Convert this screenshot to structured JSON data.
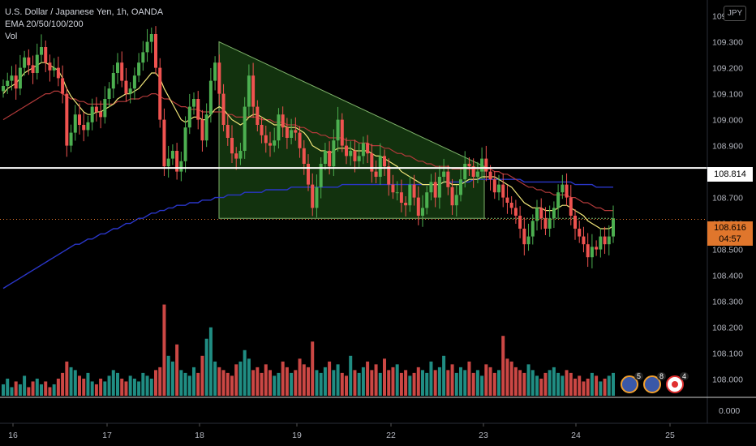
{
  "legend": {
    "symbol": "U.S. Dollar / Japanese Yen, 1h, OANDA",
    "ema": "EMA 20/50/100/200",
    "vol": "Vol"
  },
  "currency_badge": "JPY",
  "price_tags": {
    "level_line": "108.814",
    "last_price": "108.616",
    "countdown": "04:57"
  },
  "events": [
    {
      "icon": "us-flag-icon",
      "count": "5"
    },
    {
      "icon": "us-flag-icon",
      "count": "8"
    },
    {
      "icon": "target-icon",
      "count": "4"
    }
  ],
  "colors": {
    "background": "#000000",
    "up": "#4caf50",
    "down": "#ef5350",
    "vol_up": "#26a69a",
    "vol_down": "#ef5350",
    "ema20": "#f2e77a",
    "ema50": "#b23a3a",
    "ema200": "#2a36c8",
    "triangle": "#3f7f2f",
    "level_line": "#ffffff",
    "last_price": "#e0762c"
  },
  "chart_data": {
    "type": "candlestick",
    "title": "U.S. Dollar / Japanese Yen, 1h, OANDA",
    "y_ticks": [
      "109.400",
      "109.300",
      "109.200",
      "109.100",
      "109.000",
      "108.900",
      "108.800",
      "108.700",
      "108.600",
      "108.500",
      "108.400",
      "108.300",
      "108.200",
      "108.100",
      "108.000"
    ],
    "ylim": [
      107.93,
      109.43
    ],
    "volume_ticks": [
      "0.000"
    ],
    "x_ticks": [
      "16",
      "17",
      "18",
      "19",
      "22",
      "23",
      "24",
      "25"
    ],
    "horizontal_level": 108.814,
    "last_price": 108.616,
    "triangle_pattern": {
      "start_high": 109.3,
      "start_low": 108.62,
      "end_low": 108.62
    },
    "close_prices": [
      109.13,
      109.15,
      109.17,
      109.12,
      109.2,
      109.24,
      109.21,
      109.18,
      109.25,
      109.28,
      109.22,
      109.19,
      109.2,
      109.16,
      109.1,
      108.9,
      108.95,
      109.02,
      108.98,
      108.96,
      108.99,
      109.05,
      109.03,
      109.01,
      109.08,
      109.12,
      109.18,
      109.22,
      109.15,
      109.1,
      109.12,
      109.17,
      109.22,
      109.26,
      109.3,
      109.33,
      109.2,
      109.0,
      108.82,
      108.85,
      108.88,
      108.8,
      108.84,
      108.97,
      109.05,
      109.08,
      109.0,
      108.92,
      109.02,
      109.15,
      109.22,
      109.1,
      108.98,
      108.93,
      108.87,
      108.85,
      108.88,
      109.05,
      109.17,
      109.05,
      108.98,
      108.94,
      108.91,
      108.9,
      108.92,
      109.02,
      108.97,
      108.93,
      108.96,
      108.95,
      108.89,
      108.83,
      108.75,
      108.66,
      108.74,
      108.83,
      108.88,
      108.82,
      108.92,
      109.0,
      108.9,
      108.86,
      108.88,
      108.84,
      108.86,
      108.91,
      108.87,
      108.8,
      108.78,
      108.86,
      108.82,
      108.75,
      108.72,
      108.72,
      108.68,
      108.67,
      108.75,
      108.7,
      108.63,
      108.66,
      108.72,
      108.76,
      108.7,
      108.78,
      108.8,
      108.74,
      108.67,
      108.71,
      108.77,
      108.83,
      108.82,
      108.78,
      108.8,
      108.85,
      108.8,
      108.77,
      108.72,
      108.75,
      108.7,
      108.68,
      108.66,
      108.63,
      108.58,
      108.52,
      108.55,
      108.61,
      108.66,
      108.62,
      108.58,
      108.62,
      108.66,
      108.72,
      108.75,
      108.7,
      108.63,
      108.58,
      108.55,
      108.52,
      108.47,
      108.51,
      108.5,
      108.55,
      108.52,
      108.55,
      108.62
    ],
    "ema20": [
      109.1,
      109.12,
      109.13,
      109.14,
      109.16,
      109.18,
      109.19,
      109.2,
      109.21,
      109.22,
      109.22,
      109.21,
      109.2,
      109.19,
      109.16,
      109.12,
      109.09,
      109.07,
      109.05,
      109.03,
      109.02,
      109.02,
      109.03,
      109.03,
      109.04,
      109.05,
      109.06,
      109.08,
      109.09,
      109.1,
      109.1,
      109.11,
      109.12,
      109.14,
      109.16,
      109.18,
      109.18,
      109.16,
      109.12,
      109.09,
      109.06,
      109.03,
      109.0,
      108.99,
      109.0,
      109.01,
      109.01,
      109.0,
      109.0,
      109.02,
      109.04,
      109.05,
      109.04,
      109.02,
      109.0,
      108.99,
      108.98,
      108.99,
      109.01,
      109.02,
      109.02,
      109.01,
      109.0,
      108.99,
      108.98,
      108.98,
      108.98,
      108.97,
      108.97,
      108.97,
      108.96,
      108.95,
      108.93,
      108.9,
      108.89,
      108.88,
      108.88,
      108.87,
      108.88,
      108.89,
      108.89,
      108.89,
      108.89,
      108.88,
      108.88,
      108.88,
      108.88,
      108.87,
      108.86,
      108.86,
      108.85,
      108.84,
      108.83,
      108.82,
      108.8,
      108.79,
      108.78,
      108.77,
      108.76,
      108.75,
      108.75,
      108.75,
      108.75,
      108.75,
      108.76,
      108.76,
      108.75,
      108.75,
      108.75,
      108.76,
      108.77,
      108.77,
      108.77,
      108.78,
      108.78,
      108.78,
      108.78,
      108.77,
      108.76,
      108.75,
      108.74,
      108.72,
      108.7,
      108.68,
      108.67,
      108.66,
      108.66,
      108.66,
      108.65,
      108.65,
      108.65,
      108.66,
      108.67,
      108.67,
      108.66,
      108.65,
      108.64,
      108.63,
      108.61,
      108.6,
      108.59,
      108.58,
      108.58,
      108.58,
      108.59
    ],
    "ema50": [
      109.0,
      109.01,
      109.02,
      109.03,
      109.04,
      109.05,
      109.06,
      109.07,
      109.08,
      109.09,
      109.1,
      109.1,
      109.11,
      109.11,
      109.1,
      109.09,
      109.08,
      109.08,
      109.07,
      109.07,
      109.06,
      109.06,
      109.06,
      109.06,
      109.06,
      109.06,
      109.06,
      109.07,
      109.07,
      109.07,
      109.08,
      109.08,
      109.08,
      109.09,
      109.09,
      109.1,
      109.1,
      109.09,
      109.08,
      109.08,
      109.07,
      109.06,
      109.05,
      109.05,
      109.04,
      109.04,
      109.04,
      109.03,
      109.03,
      109.03,
      109.03,
      109.03,
      109.03,
      109.02,
      109.02,
      109.01,
      109.01,
      109.01,
      109.01,
      109.01,
      109.01,
      109.0,
      109.0,
      109.0,
      108.99,
      108.99,
      108.99,
      108.98,
      108.98,
      108.98,
      108.97,
      108.97,
      108.96,
      108.95,
      108.95,
      108.94,
      108.94,
      108.93,
      108.93,
      108.93,
      108.93,
      108.92,
      108.92,
      108.92,
      108.91,
      108.91,
      108.91,
      108.9,
      108.9,
      108.9,
      108.89,
      108.89,
      108.88,
      108.87,
      108.87,
      108.86,
      108.86,
      108.85,
      108.84,
      108.84,
      108.83,
      108.83,
      108.82,
      108.82,
      108.82,
      108.82,
      108.81,
      108.81,
      108.81,
      108.81,
      108.81,
      108.81,
      108.81,
      108.81,
      108.81,
      108.81,
      108.8,
      108.8,
      108.79,
      108.79,
      108.78,
      108.77,
      108.76,
      108.75,
      108.74,
      108.74,
      108.73,
      108.73,
      108.72,
      108.72,
      108.71,
      108.71,
      108.71,
      108.71,
      108.7,
      108.7,
      108.69,
      108.68,
      108.68,
      108.67,
      108.66,
      108.66,
      108.65,
      108.65,
      108.65
    ],
    "ema200": [
      108.35,
      108.36,
      108.37,
      108.38,
      108.39,
      108.4,
      108.41,
      108.42,
      108.43,
      108.44,
      108.45,
      108.46,
      108.47,
      108.48,
      108.49,
      108.5,
      108.51,
      108.52,
      108.52,
      108.53,
      108.54,
      108.54,
      108.55,
      108.56,
      108.56,
      108.57,
      108.58,
      108.58,
      108.59,
      108.6,
      108.6,
      108.61,
      108.62,
      108.62,
      108.63,
      108.64,
      108.64,
      108.65,
      108.65,
      108.66,
      108.66,
      108.67,
      108.67,
      108.67,
      108.68,
      108.68,
      108.68,
      108.69,
      108.69,
      108.69,
      108.7,
      108.7,
      108.7,
      108.71,
      108.71,
      108.71,
      108.71,
      108.72,
      108.72,
      108.72,
      108.72,
      108.72,
      108.73,
      108.73,
      108.73,
      108.73,
      108.73,
      108.73,
      108.74,
      108.74,
      108.74,
      108.74,
      108.74,
      108.74,
      108.74,
      108.74,
      108.74,
      108.74,
      108.74,
      108.74,
      108.75,
      108.75,
      108.75,
      108.75,
      108.75,
      108.75,
      108.75,
      108.75,
      108.75,
      108.75,
      108.75,
      108.75,
      108.75,
      108.75,
      108.75,
      108.75,
      108.75,
      108.75,
      108.75,
      108.75,
      108.75,
      108.75,
      108.75,
      108.75,
      108.76,
      108.76,
      108.76,
      108.76,
      108.76,
      108.76,
      108.76,
      108.77,
      108.77,
      108.77,
      108.77,
      108.77,
      108.77,
      108.77,
      108.77,
      108.77,
      108.77,
      108.77,
      108.77,
      108.76,
      108.76,
      108.76,
      108.76,
      108.76,
      108.76,
      108.76,
      108.76,
      108.76,
      108.76,
      108.76,
      108.76,
      108.75,
      108.75,
      108.75,
      108.75,
      108.75,
      108.74,
      108.74,
      108.74,
      108.74,
      108.74
    ],
    "volume": [
      4,
      6,
      3,
      5,
      4,
      7,
      3,
      5,
      6,
      4,
      5,
      3,
      4,
      6,
      8,
      12,
      10,
      9,
      7,
      6,
      8,
      5,
      4,
      6,
      5,
      7,
      9,
      8,
      6,
      5,
      7,
      6,
      5,
      8,
      7,
      6,
      9,
      10,
      32,
      14,
      12,
      18,
      9,
      8,
      7,
      10,
      8,
      14,
      20,
      24,
      12,
      10,
      9,
      8,
      7,
      11,
      12,
      16,
      13,
      9,
      10,
      8,
      11,
      9,
      7,
      8,
      12,
      10,
      8,
      9,
      13,
      11,
      10,
      19,
      9,
      8,
      10,
      12,
      9,
      11,
      8,
      7,
      14,
      9,
      8,
      10,
      12,
      9,
      11,
      8,
      13,
      9,
      10,
      11,
      8,
      9,
      7,
      8,
      10,
      9,
      8,
      12,
      9,
      10,
      14,
      9,
      11,
      8,
      10,
      9,
      12,
      8,
      9,
      7,
      11,
      10,
      8,
      9,
      21,
      13,
      12,
      10,
      9,
      8,
      11,
      9,
      7,
      6,
      8,
      9,
      10,
      8,
      7,
      9,
      8,
      6,
      7,
      5,
      6,
      8,
      7,
      5,
      6,
      7,
      8
    ]
  }
}
